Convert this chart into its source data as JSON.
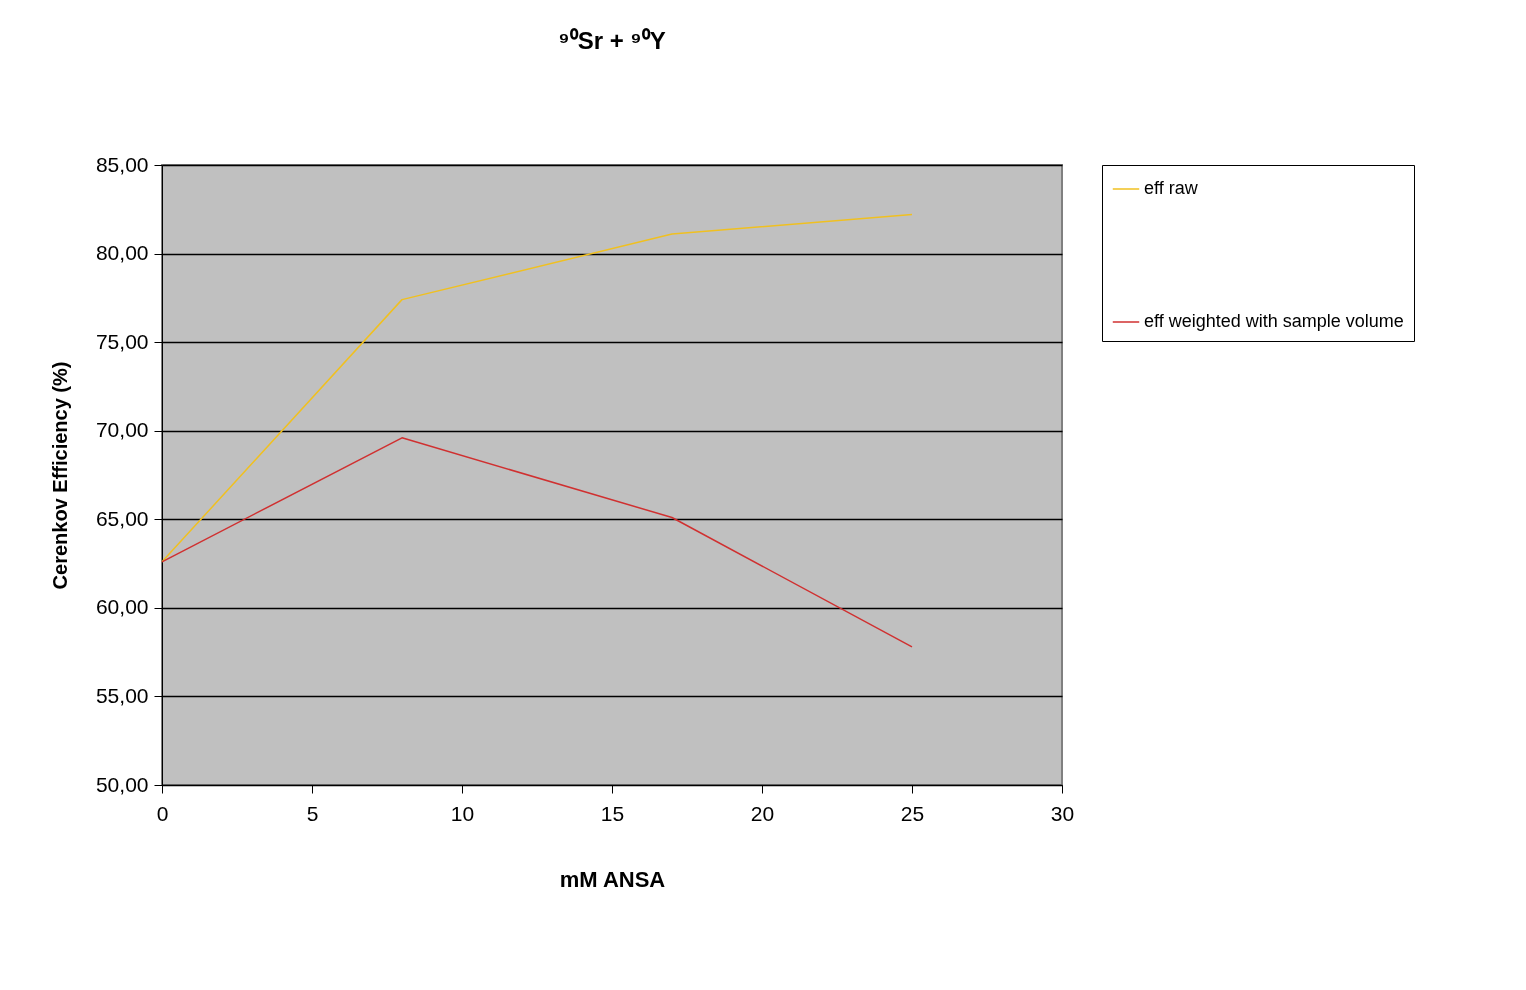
{
  "chart_data": {
    "type": "line",
    "title": "⁹⁰Sr + ⁹⁰Y",
    "xlabel": "mM ANSA",
    "ylabel": "Cerenkov Efficiency (%)",
    "x": [
      0,
      8,
      17,
      25
    ],
    "series": [
      {
        "name": "eff raw",
        "color": "#f0c020",
        "values": [
          62.6,
          77.4,
          81.1,
          82.2
        ]
      },
      {
        "name": "eff weighted with sample volume",
        "color": "#d03030",
        "values": [
          62.6,
          69.6,
          65.1,
          57.8
        ]
      }
    ],
    "xlim": [
      0,
      30
    ],
    "xticks": [
      0,
      5,
      10,
      15,
      20,
      25,
      30
    ],
    "ylim": [
      50,
      85
    ],
    "yticks": [
      {
        "value": 50,
        "label": "50,00"
      },
      {
        "value": 55,
        "label": "55,00"
      },
      {
        "value": 60,
        "label": "60,00"
      },
      {
        "value": 65,
        "label": "65,00"
      },
      {
        "value": 70,
        "label": "70,00"
      },
      {
        "value": 75,
        "label": "75,00"
      },
      {
        "value": 80,
        "label": "80,00"
      },
      {
        "value": 85,
        "label": "85,00"
      }
    ],
    "grid": "y",
    "legend": "right",
    "marker": "none",
    "line_style": "solid"
  }
}
